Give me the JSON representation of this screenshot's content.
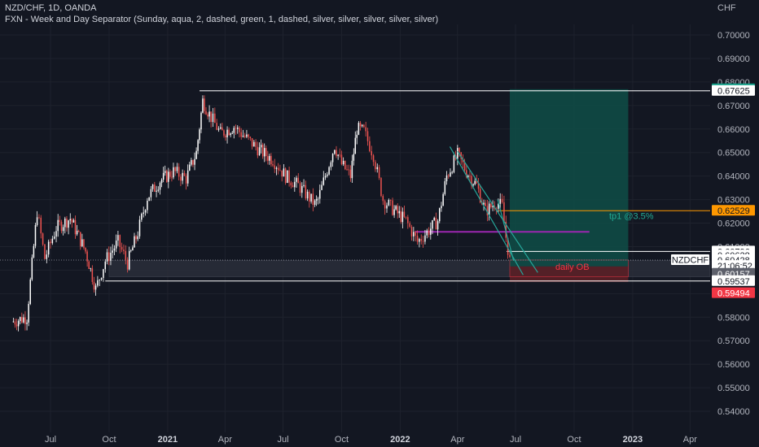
{
  "header": {
    "symbol_line": "NZD/CHF, 1D, OANDA",
    "indicator_line": "FXN - Week and Day Separator (Sunday, aqua, 2, dashed, green, 1, dashed, silver, silver, silver, silver, silver)"
  },
  "chart_data": {
    "type": "candlestick",
    "currency_label": "CHF",
    "y_ticks": [
      "0.70000",
      "0.69000",
      "0.68000",
      "0.67000",
      "0.66000",
      "0.65000",
      "0.64000",
      "0.63000",
      "0.62000",
      "0.61000",
      "0.60000",
      "0.59000",
      "0.58000",
      "0.57000",
      "0.56000",
      "0.55000",
      "0.54000"
    ],
    "y_tick_values": [
      0.7,
      0.69,
      0.68,
      0.67,
      0.66,
      0.65,
      0.64,
      0.63,
      0.62,
      0.61,
      0.6,
      0.59,
      0.58,
      0.57,
      0.56,
      0.55,
      0.54
    ],
    "x_ticks": [
      {
        "label": "Jul",
        "bold": false,
        "t": "2020-07-01"
      },
      {
        "label": "Oct",
        "bold": false,
        "t": "2020-10-01"
      },
      {
        "label": "2021",
        "bold": true,
        "t": "2021-01-01"
      },
      {
        "label": "Apr",
        "bold": false,
        "t": "2021-04-01"
      },
      {
        "label": "Jul",
        "bold": false,
        "t": "2021-07-01"
      },
      {
        "label": "Oct",
        "bold": false,
        "t": "2021-10-01"
      },
      {
        "label": "2022",
        "bold": true,
        "t": "2022-01-01"
      },
      {
        "label": "Apr",
        "bold": false,
        "t": "2022-04-01"
      },
      {
        "label": "Jul",
        "bold": false,
        "t": "2022-07-01"
      },
      {
        "label": "Oct",
        "bold": false,
        "t": "2022-10-01"
      },
      {
        "label": "2023",
        "bold": true,
        "t": "2023-01-01"
      },
      {
        "label": "Apr",
        "bold": false,
        "t": "2023-04-01"
      }
    ],
    "price_path": [
      [
        "2020-05-01",
        0.578
      ],
      [
        "2020-05-25",
        0.58
      ],
      [
        "2020-06-10",
        0.625
      ],
      [
        "2020-06-22",
        0.605
      ],
      [
        "2020-07-10",
        0.618
      ],
      [
        "2020-08-01",
        0.622
      ],
      [
        "2020-08-25",
        0.608
      ],
      [
        "2020-09-10",
        0.592
      ],
      [
        "2020-09-25",
        0.604
      ],
      [
        "2020-10-15",
        0.612
      ],
      [
        "2020-10-30",
        0.603
      ],
      [
        "2020-11-15",
        0.616
      ],
      [
        "2020-11-30",
        0.631
      ],
      [
        "2020-12-20",
        0.638
      ],
      [
        "2021-01-10",
        0.642
      ],
      [
        "2021-01-30",
        0.639
      ],
      [
        "2021-02-15",
        0.65
      ],
      [
        "2021-02-25",
        0.672
      ],
      [
        "2021-03-10",
        0.665
      ],
      [
        "2021-03-25",
        0.658
      ],
      [
        "2021-04-15",
        0.661
      ],
      [
        "2021-05-05",
        0.656
      ],
      [
        "2021-05-25",
        0.651
      ],
      [
        "2021-06-15",
        0.647
      ],
      [
        "2021-07-05",
        0.64
      ],
      [
        "2021-07-25",
        0.636
      ],
      [
        "2021-08-20",
        0.628
      ],
      [
        "2021-08-25",
        0.63
      ],
      [
        "2021-09-20",
        0.653
      ],
      [
        "2021-10-01",
        0.645
      ],
      [
        "2021-10-15",
        0.64
      ],
      [
        "2021-10-25",
        0.66
      ],
      [
        "2021-11-05",
        0.659
      ],
      [
        "2021-11-20",
        0.649
      ],
      [
        "2021-12-05",
        0.63
      ],
      [
        "2021-12-20",
        0.626
      ],
      [
        "2022-01-10",
        0.621
      ],
      [
        "2022-01-28",
        0.612
      ],
      [
        "2022-02-15",
        0.617
      ],
      [
        "2022-03-01",
        0.621
      ],
      [
        "2022-03-15",
        0.64
      ],
      [
        "2022-04-01",
        0.649
      ],
      [
        "2022-04-15",
        0.642
      ],
      [
        "2022-05-01",
        0.636
      ],
      [
        "2022-05-15",
        0.625
      ],
      [
        "2022-06-01",
        0.629
      ],
      [
        "2022-06-10",
        0.627
      ],
      [
        "2022-06-16",
        0.614
      ],
      [
        "2022-06-22",
        0.604
      ]
    ],
    "levels": {
      "top_level": {
        "value": 0.67625,
        "t_start": "2021-02-20"
      },
      "bottom_level": {
        "value": 0.59537,
        "t_start": "2020-09-25"
      },
      "purple_level": {
        "value": 0.6163,
        "t_start": "2022-01-24",
        "t_end": "2022-10-25"
      },
      "orange_level": {
        "value": 0.62529,
        "t_start": "2022-06-05"
      },
      "white_level": {
        "value": 0.60796,
        "t_start": "2022-06-17"
      },
      "current_price": {
        "value": 0.60428
      }
    },
    "channel": [
      {
        "t1": "2022-03-20",
        "p1": 0.6525,
        "t2": "2022-07-13",
        "p2": 0.598
      },
      {
        "t1": "2022-04-01",
        "p1": 0.6505,
        "t2": "2022-08-05",
        "p2": 0.599
      },
      {
        "t1": "2022-06-03",
        "p1": 0.63,
        "t2": "2022-06-28",
        "p2": 0.604
      }
    ],
    "long_position": {
      "t_start": "2022-06-22",
      "t_end": "2022-12-25",
      "target": 0.67692,
      "entry": 0.60157,
      "stop": 0.59494
    },
    "zones": {
      "grey_zone": {
        "t_start": "2020-10-01",
        "t_end": "2023-04-30",
        "top": 0.604,
        "bottom": 0.5972
      },
      "daily_ob": {
        "t_start": "2022-06-22",
        "t_end": "2022-12-25",
        "top": 0.6043,
        "bottom": 0.5972,
        "label": "daily OB"
      }
    },
    "annotations": [
      {
        "text": "tp1 @3.5%",
        "t": "2022-11-25",
        "price": 0.6218,
        "color": "#22ab94"
      }
    ],
    "price_badges": [
      {
        "label": "0.67692",
        "price": 0.67692,
        "bg": "#089981",
        "fg": "#ffffff"
      },
      {
        "label": "0.67625",
        "price": 0.67625,
        "bg": "#ffffff",
        "fg": "#131722"
      },
      {
        "label": "0.62529",
        "price": 0.62529,
        "bg": "#ff9800",
        "fg": "#131722"
      },
      {
        "label": "0.60796",
        "price": 0.60796,
        "bg": "#ffffff",
        "fg": "#131722"
      },
      {
        "label": "0.60628",
        "price": 0.60628,
        "bg": "#ffffff",
        "fg": "#131722"
      },
      {
        "label": "0.60428",
        "price": 0.60428,
        "bg": "#ffffff",
        "fg": "#131722"
      },
      {
        "label": "21:06:52",
        "price": 0.6018,
        "bg": "#ffffff",
        "fg": "#131722"
      },
      {
        "label": "0.60157",
        "price": 0.59848,
        "bg": "#5d606b",
        "fg": "#ffffff"
      },
      {
        "label": "0.59537",
        "price": 0.59537,
        "bg": "#ffffff",
        "fg": "#131722"
      },
      {
        "label": "0.59494",
        "price": 0.59022,
        "bg": "#f23645",
        "fg": "#ffffff"
      }
    ],
    "symbol_badge": {
      "label": "NZDCHF",
      "price": 0.60428
    },
    "colors": {
      "background": "#131722",
      "up": "#ffffff",
      "down": "#ef5350",
      "grid": "#1e222d",
      "target_zone": "#0f4a45",
      "stop_zone": "#5a1f26",
      "grey_zone": "#2a2e39",
      "purple": "#9c27b0",
      "orange": "#ff9800",
      "channel": "#26a69a",
      "white": "#ffffff",
      "red": "#f23645"
    }
  }
}
